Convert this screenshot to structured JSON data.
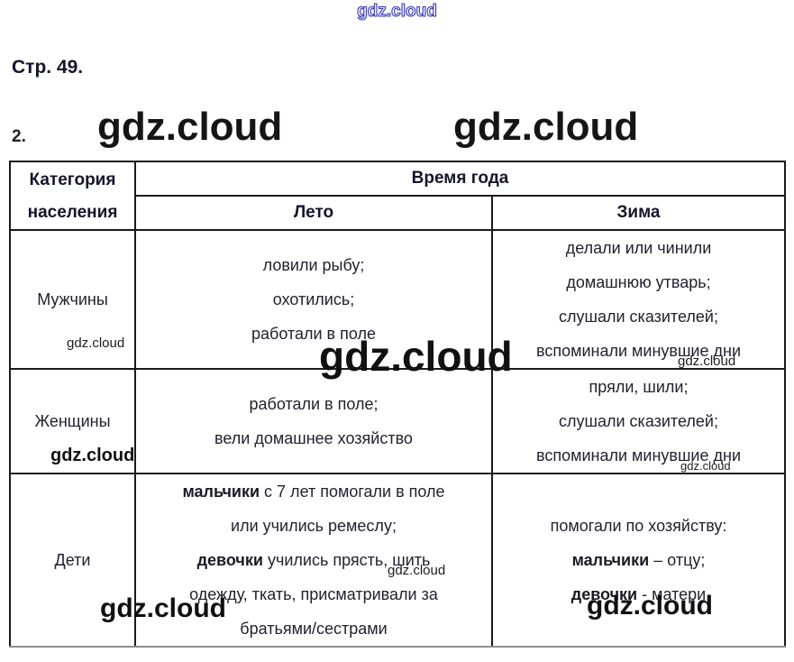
{
  "page": {
    "heading": "Стр. 49.",
    "item_number": "2."
  },
  "watermarks": {
    "brand": "gdz.cloud",
    "top": "gdz.cloud",
    "header_left": "gdz.cloud",
    "header_right": "gdz.cloud",
    "row1_left_small": "gdz.cloud",
    "row1_center_large": "gdz.cloud",
    "row1_right_small": "gdz.cloud",
    "row2_left_bold": "gdz.cloud",
    "row2_right_small": "gdz.cloud",
    "row3_center_small": "gdz.cloud",
    "row3_left_large": "gdz.cloud",
    "row3_right_large": "gdz.cloud",
    "outline_color": "#3d3db8"
  },
  "table": {
    "header": {
      "category_line1": "Категория",
      "category_line2": "населения",
      "season": "Время года",
      "summer": "Лето",
      "winter": "Зима"
    },
    "rows": [
      {
        "category": "Мужчины",
        "summer": [
          {
            "t": "ловили рыбу;"
          },
          {
            "t": "охотились;"
          },
          {
            "t": "работали в поле"
          }
        ],
        "winter": [
          {
            "t": "делали или чинили"
          },
          {
            "t": "домашнюю утварь;"
          },
          {
            "t": "слушали сказителей;"
          },
          {
            "t": "вспоминали минувшие дни"
          }
        ]
      },
      {
        "category": "Женщины",
        "summer": [
          {
            "t": "работали в поле;"
          },
          {
            "t": "вели домашнее хозяйство"
          }
        ],
        "winter": [
          {
            "t": "пряли, шили;"
          },
          {
            "t": "слушали сказителей;"
          },
          {
            "t": "вспоминали минувшие дни"
          }
        ]
      },
      {
        "category": "Дети",
        "summer": [
          {
            "b": "мальчики",
            "t": " с 7 лет помогали в поле"
          },
          {
            "t": "или учились ремеслу;"
          },
          {
            "b": "девочки",
            "t": " учились прясть, шить"
          },
          {
            "t": "одежду, ткать, присматривали за"
          },
          {
            "t": "братьями/сестрами"
          }
        ],
        "winter": [
          {
            "t": "помогали по хозяйству:"
          },
          {
            "b": "мальчики",
            "t": " – отцу;"
          },
          {
            "b": "девочки",
            "t": " - матери"
          }
        ]
      }
    ]
  }
}
